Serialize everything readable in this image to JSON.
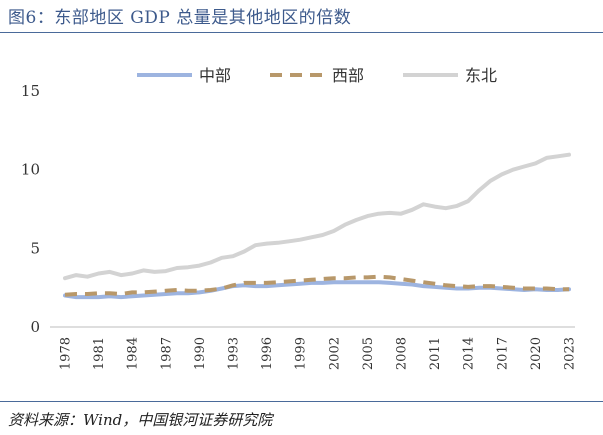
{
  "title": "图6：东部地区 GDP 总量是其他地区的倍数",
  "source": "资料来源：Wind，中国银河证券研究院",
  "chart_data": {
    "type": "line",
    "x": [
      1978,
      1979,
      1980,
      1981,
      1982,
      1983,
      1984,
      1985,
      1986,
      1987,
      1988,
      1989,
      1990,
      1991,
      1992,
      1993,
      1994,
      1995,
      1996,
      1997,
      1998,
      1999,
      2000,
      2001,
      2002,
      2003,
      2004,
      2005,
      2006,
      2007,
      2008,
      2009,
      2010,
      2011,
      2012,
      2013,
      2014,
      2015,
      2016,
      2017,
      2018,
      2019,
      2020,
      2021,
      2022,
      2023
    ],
    "x_ticks": [
      "1978",
      "1981",
      "1984",
      "1987",
      "1990",
      "1993",
      "1996",
      "1999",
      "2002",
      "2005",
      "2008",
      "2011",
      "2014",
      "2017",
      "2020",
      "2023"
    ],
    "ylim": [
      0,
      15
    ],
    "y_ticks": [
      "0",
      "5",
      "10",
      "15"
    ],
    "legend_position": "top",
    "series": [
      {
        "name": "中部",
        "color": "#9db4e0",
        "values": [
          2.0,
          1.9,
          1.9,
          1.9,
          1.95,
          1.9,
          1.95,
          2.0,
          2.05,
          2.1,
          2.15,
          2.15,
          2.2,
          2.3,
          2.45,
          2.6,
          2.65,
          2.6,
          2.6,
          2.65,
          2.7,
          2.75,
          2.8,
          2.8,
          2.85,
          2.85,
          2.85,
          2.85,
          2.85,
          2.8,
          2.75,
          2.7,
          2.6,
          2.55,
          2.5,
          2.45,
          2.45,
          2.5,
          2.5,
          2.45,
          2.4,
          2.35,
          2.4,
          2.35,
          2.35,
          2.4
        ]
      },
      {
        "name": "西部",
        "color": "#b8986a",
        "dash": true,
        "values": [
          2.05,
          2.1,
          2.1,
          2.15,
          2.15,
          2.1,
          2.2,
          2.2,
          2.25,
          2.3,
          2.35,
          2.3,
          2.3,
          2.35,
          2.45,
          2.65,
          2.8,
          2.8,
          2.8,
          2.85,
          2.9,
          2.95,
          3.0,
          3.05,
          3.1,
          3.1,
          3.15,
          3.15,
          3.2,
          3.15,
          3.05,
          2.95,
          2.85,
          2.75,
          2.65,
          2.6,
          2.55,
          2.6,
          2.6,
          2.55,
          2.5,
          2.45,
          2.45,
          2.45,
          2.4,
          2.4
        ]
      },
      {
        "name": "东北",
        "color": "#d3d3d3",
        "values": [
          3.1,
          3.3,
          3.2,
          3.4,
          3.5,
          3.3,
          3.4,
          3.6,
          3.5,
          3.55,
          3.75,
          3.8,
          3.9,
          4.1,
          4.4,
          4.5,
          4.8,
          5.2,
          5.3,
          5.35,
          5.45,
          5.55,
          5.7,
          5.85,
          6.1,
          6.5,
          6.8,
          7.05,
          7.2,
          7.25,
          7.2,
          7.45,
          7.8,
          7.65,
          7.55,
          7.7,
          8.0,
          8.7,
          9.3,
          9.7,
          10.0,
          10.2,
          10.4,
          10.75,
          10.85,
          10.95
        ]
      }
    ]
  }
}
